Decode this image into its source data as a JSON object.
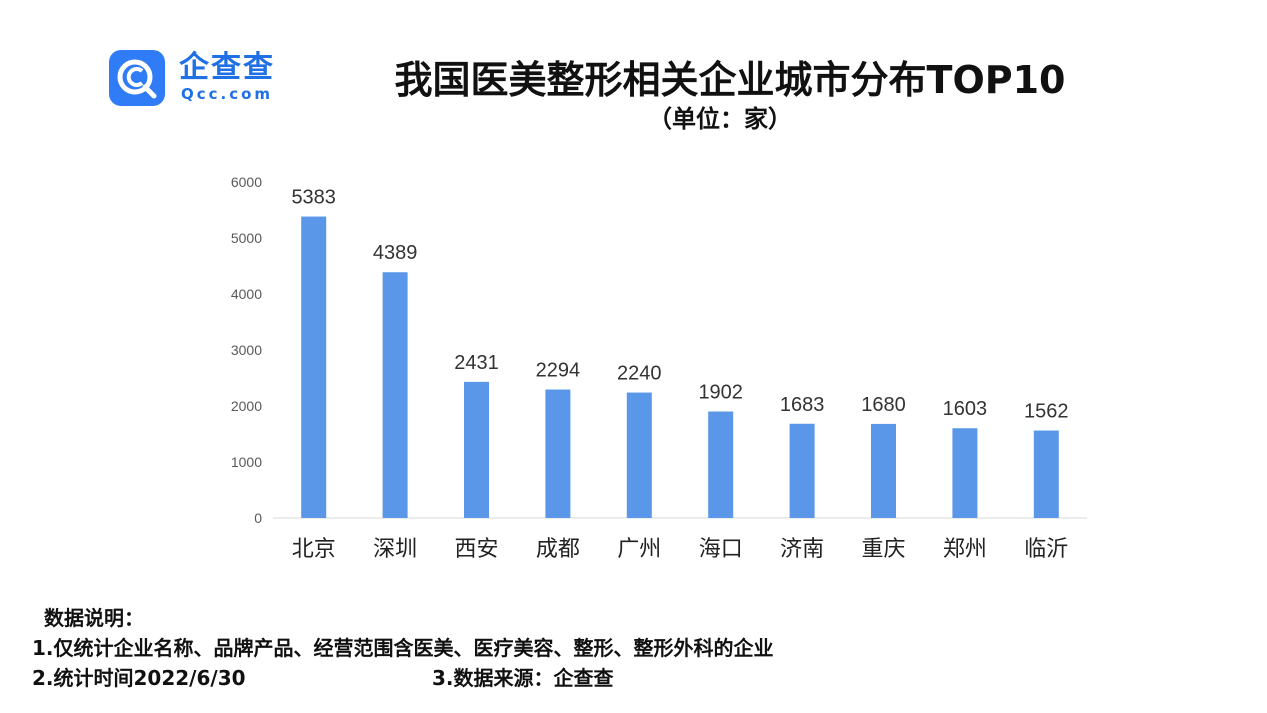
{
  "brand": {
    "name_cn": "企查查",
    "name_en": "Qcc.com",
    "color": "#2f7cf6"
  },
  "header": {
    "title": "我国医美整形相关企业城市分布TOP10",
    "subtitle": "（单位：家）"
  },
  "chart_data": {
    "type": "bar",
    "categories": [
      "北京",
      "深圳",
      "西安",
      "成都",
      "广州",
      "海口",
      "济南",
      "重庆",
      "郑州",
      "临沂"
    ],
    "values": [
      5383,
      4389,
      2431,
      2294,
      2240,
      1902,
      1683,
      1680,
      1603,
      1562
    ],
    "yticks": [
      0,
      1000,
      2000,
      3000,
      4000,
      5000,
      6000
    ],
    "ylim": [
      0,
      6000
    ],
    "title": "我国医美整形相关企业城市分布TOP10",
    "subtitle": "（单位：家）",
    "xlabel": "",
    "ylabel": "",
    "grid": false,
    "bar_color": "#5b97e8",
    "data_labels": true
  },
  "notes": {
    "heading": "数据说明：",
    "line1": "1.仅统计企业名称、品牌产品、经营范围含医美、医疗美容、整形、整形外科的企业",
    "line2": "2.统计时间2022/6/30",
    "line3": "3.数据来源：企查查"
  }
}
